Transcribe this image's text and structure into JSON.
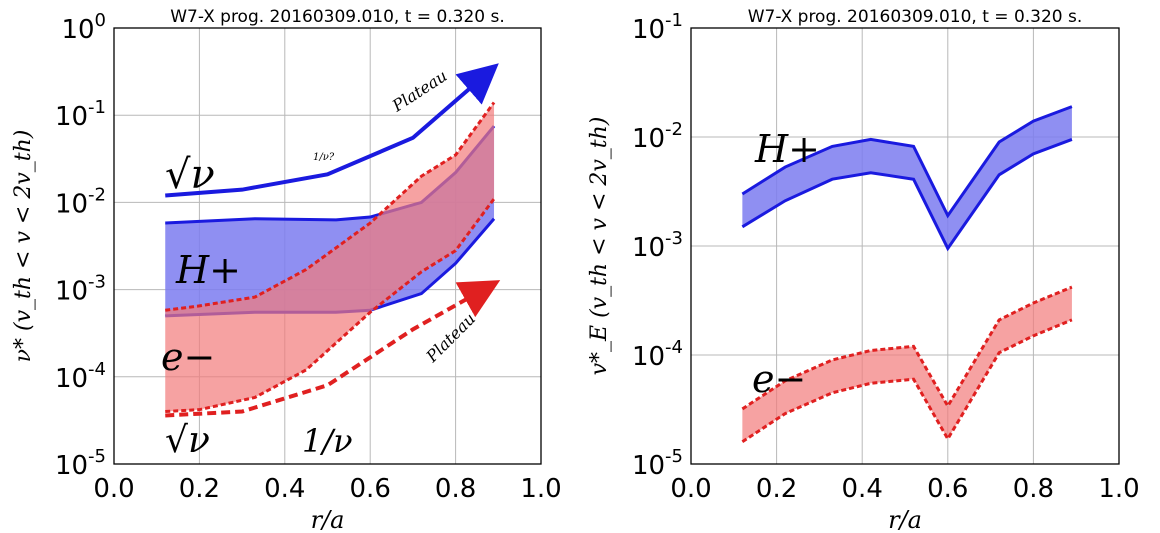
{
  "chart_data": [
    {
      "type": "area",
      "title": "W7-X prog. 20160309.010, t = 0.320 s.",
      "xlabel": "r/a",
      "ylabel": "ν* (v_th < v < 2v_th)",
      "xlim": [
        0.0,
        1.0
      ],
      "ylim": [
        1e-05,
        1
      ],
      "yscale": "log",
      "grid": true,
      "x_ticks": [
        "0.0",
        "0.2",
        "0.4",
        "0.6",
        "0.8",
        "1.0"
      ],
      "y_ticks": [
        {
          "base": "10",
          "exp": "0"
        },
        {
          "base": "10",
          "exp": "-1"
        },
        {
          "base": "10",
          "exp": "-2"
        },
        {
          "base": "10",
          "exp": "-3"
        },
        {
          "base": "10",
          "exp": "-4"
        },
        {
          "base": "10",
          "exp": "-5"
        }
      ],
      "series": [
        {
          "name": "H+",
          "color": "#1a1adf",
          "fill": "#7b7bf0",
          "x": [
            0.12,
            0.33,
            0.52,
            0.6,
            0.72,
            0.8,
            0.89
          ],
          "upper": [
            0.0058,
            0.0065,
            0.0063,
            0.0068,
            0.01,
            0.022,
            0.075
          ],
          "lower": [
            0.0005,
            0.00055,
            0.00055,
            0.00058,
            0.0009,
            0.002,
            0.0065
          ]
        },
        {
          "name": "e-",
          "color": "#e02020",
          "fill": "#f27a7a",
          "x": [
            0.12,
            0.2,
            0.33,
            0.45,
            0.6,
            0.72,
            0.8,
            0.89
          ],
          "upper": [
            0.00058,
            0.00065,
            0.00082,
            0.0017,
            0.0058,
            0.02,
            0.035,
            0.14
          ],
          "lower": [
            4e-05,
            4.2e-05,
            5.8e-05,
            0.00012,
            0.00055,
            0.0016,
            0.0028,
            0.011
          ]
        }
      ],
      "annotations": {
        "sqrt_nu_top": "√ν",
        "sqrt_nu_bottom": "√ν",
        "plateau_top": "Plateau",
        "plateau_bottom": "Plateau",
        "one_over_nu_small": "1/ν?",
        "one_over_nu": "1/ν",
        "h_label": "H+",
        "e_label": "e−"
      },
      "arrows": [
        {
          "name": "blue-regime-arrow",
          "style": "solid",
          "color": "#1a1adf",
          "x": [
            0.12,
            0.3,
            0.5,
            0.7,
            0.88
          ],
          "y": [
            0.012,
            0.014,
            0.021,
            0.055,
            0.32
          ]
        },
        {
          "name": "red-regime-arrow",
          "style": "dashed",
          "color": "#e02020",
          "x": [
            0.12,
            0.3,
            0.5,
            0.7,
            0.88
          ],
          "y": [
            3.6e-05,
            4e-05,
            8e-05,
            0.00035,
            0.0011
          ]
        }
      ]
    },
    {
      "type": "area",
      "title": "W7-X prog. 20160309.010, t = 0.320 s.",
      "xlabel": "r/a",
      "ylabel": "v*_E (v_th < v < 2v_th)",
      "xlim": [
        0.0,
        1.0
      ],
      "ylim": [
        1e-05,
        0.1
      ],
      "yscale": "log",
      "grid": true,
      "x_ticks": [
        "0.0",
        "0.2",
        "0.4",
        "0.6",
        "0.8",
        "1.0"
      ],
      "y_ticks": [
        {
          "base": "10",
          "exp": "-1"
        },
        {
          "base": "10",
          "exp": "-2"
        },
        {
          "base": "10",
          "exp": "-3"
        },
        {
          "base": "10",
          "exp": "-4"
        },
        {
          "base": "10",
          "exp": "-5"
        }
      ],
      "series": [
        {
          "name": "H+",
          "color": "#1a1adf",
          "fill": "#7b7bf0",
          "x": [
            0.12,
            0.22,
            0.33,
            0.42,
            0.52,
            0.6,
            0.72,
            0.8,
            0.89
          ],
          "upper": [
            0.003,
            0.0053,
            0.0082,
            0.0095,
            0.0082,
            0.0019,
            0.009,
            0.014,
            0.019
          ],
          "lower": [
            0.0015,
            0.0026,
            0.0041,
            0.0047,
            0.0041,
            0.00095,
            0.0045,
            0.007,
            0.0095
          ]
        },
        {
          "name": "e-",
          "color": "#e02020",
          "fill": "#f27a7a",
          "x": [
            0.12,
            0.22,
            0.33,
            0.42,
            0.52,
            0.6,
            0.72,
            0.8,
            0.89
          ],
          "upper": [
            3.2e-05,
            5.8e-05,
            9e-05,
            0.00011,
            0.00012,
            3.4e-05,
            0.00021,
            0.0003,
            0.00042
          ],
          "lower": [
            1.6e-05,
            2.9e-05,
            4.5e-05,
            5.5e-05,
            6e-05,
            1.7e-05,
            0.000105,
            0.00015,
            0.00021
          ]
        }
      ],
      "annotations": {
        "h_label": "H+",
        "e_label": "e−"
      }
    }
  ]
}
